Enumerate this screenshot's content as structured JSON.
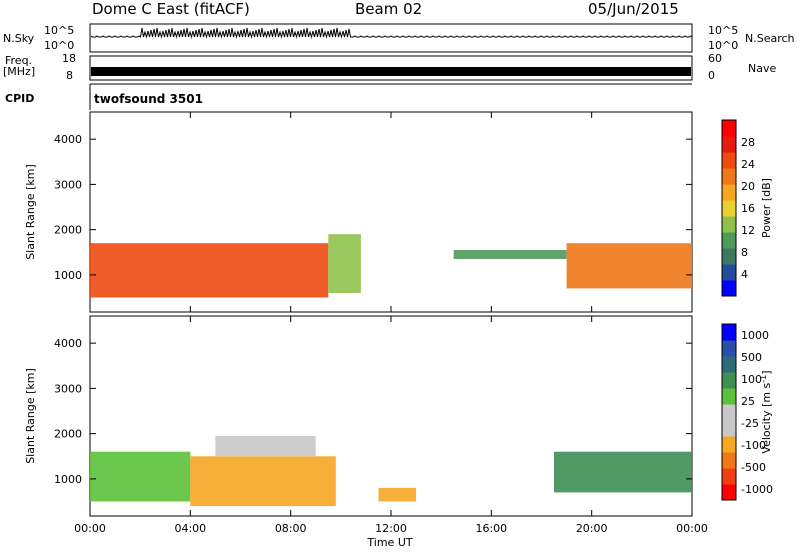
{
  "header": {
    "station": "Dome C East (fitACF)",
    "beam": "Beam 02",
    "date": "05/Jun/2015"
  },
  "status_panel": {
    "nsky_label": "N.Sky",
    "nsky_ticks": [
      "10^5",
      "10^0"
    ],
    "nsearch_label": "N.Search",
    "nsearch_ticks": [
      "10^5",
      "10^0"
    ],
    "freq_label": "Freq.",
    "freq_unit": "[MHz]",
    "freq_ticks": [
      "18",
      "8"
    ],
    "nave_label": "Nave",
    "nave_ticks": [
      "60",
      "0"
    ],
    "cpid_label": "CPID",
    "cpid_value": "twofsound 3501"
  },
  "colors": {
    "power_scale": [
      "#0000ff",
      "#244c9e",
      "#3b7a5e",
      "#4f9a5a",
      "#8fc24a",
      "#e8d02e",
      "#f5a623",
      "#f07818",
      "#ee4a10",
      "#e61b0c",
      "#ff0000"
    ],
    "velocity_scale": [
      "#ff0000",
      "#ef4012",
      "#f07818",
      "#f5a623",
      "#c8c8c8",
      "#c8c8c8",
      "#5cc13a",
      "#3e8f55",
      "#2e6a78",
      "#2a4fa8",
      "#0000ff"
    ]
  },
  "chart_data": [
    {
      "type": "heatmap",
      "name": "power",
      "ylabel": "Slant Range [km]",
      "xlabel": "",
      "ylim": [
        180,
        4600
      ],
      "yticks": [
        1000,
        2000,
        3000,
        4000
      ],
      "xlim": [
        0,
        24
      ],
      "xticks": [
        0,
        4,
        8,
        12,
        16,
        20,
        24
      ],
      "colorbar": {
        "label": "Power [dB]",
        "ticks": [
          4,
          8,
          12,
          16,
          20,
          24,
          28
        ],
        "range": [
          0,
          32
        ]
      },
      "regions": [
        {
          "t0": 0.0,
          "t1": 9.5,
          "r0": 500,
          "r1": 1700,
          "value": 26
        },
        {
          "t0": 9.5,
          "t1": 10.8,
          "r0": 600,
          "r1": 1900,
          "value": 12
        },
        {
          "t0": 14.5,
          "t1": 19.0,
          "r0": 1350,
          "r1": 1550,
          "value": 10
        },
        {
          "t0": 19.0,
          "t1": 24.0,
          "r0": 700,
          "r1": 1700,
          "value": 22
        }
      ]
    },
    {
      "type": "heatmap",
      "name": "velocity",
      "ylabel": "Slant Range [km]",
      "xlabel": "Time UT",
      "ylim": [
        180,
        4600
      ],
      "yticks": [
        1000,
        2000,
        3000,
        4000
      ],
      "xlim": [
        0,
        24
      ],
      "xticks": [
        0,
        4,
        8,
        12,
        16,
        20,
        24
      ],
      "xtick_labels": [
        "00:00",
        "04:00",
        "08:00",
        "12:00",
        "16:00",
        "20:00",
        "00:00"
      ],
      "colorbar": {
        "label": "Velocity [m s",
        "label_sup": "-1",
        "label_end": "]",
        "ticks": [
          "1000",
          "500",
          "100",
          "25",
          "-25",
          "-100",
          "-500",
          "-1000"
        ]
      },
      "regions": [
        {
          "t0": 0.0,
          "t1": 4.0,
          "r0": 500,
          "r1": 1600,
          "value": 25
        },
        {
          "t0": 4.0,
          "t1": 9.8,
          "r0": 400,
          "r1": 1500,
          "value": -100
        },
        {
          "t0": 5.0,
          "t1": 9.0,
          "r0": 1500,
          "r1": 1950,
          "value": 0
        },
        {
          "t0": 11.5,
          "t1": 13.0,
          "r0": 500,
          "r1": 800,
          "value": -100
        },
        {
          "t0": 18.5,
          "t1": 24.0,
          "r0": 700,
          "r1": 1600,
          "value": 100
        }
      ]
    }
  ]
}
